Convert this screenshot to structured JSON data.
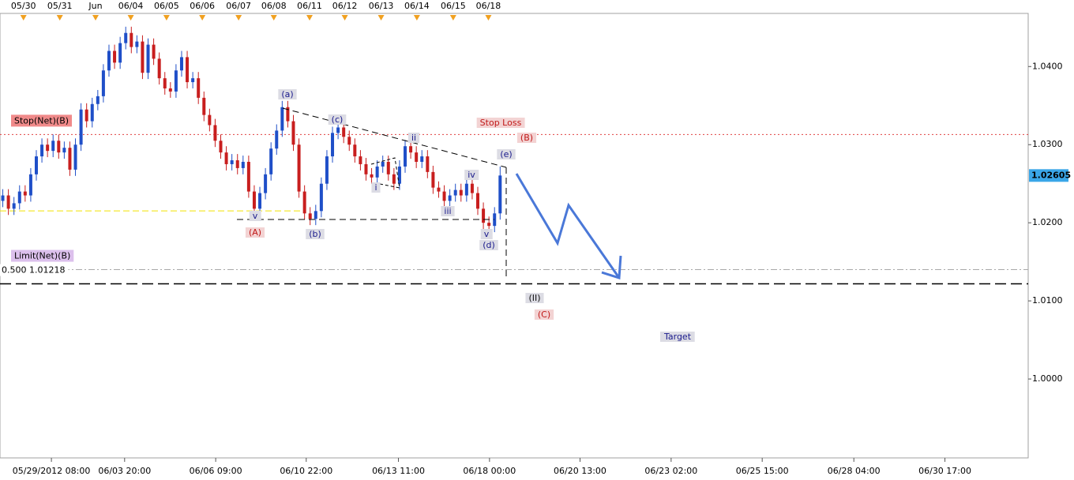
{
  "chart_data": {
    "type": "candlestick",
    "up_color": "#1f4fc8",
    "down_color": "#c81e1e",
    "ohlc": [
      [
        1.0228,
        1.0243,
        1.022,
        1.0235
      ],
      [
        1.0235,
        1.0243,
        1.021,
        1.0218
      ],
      [
        1.0218,
        1.0233,
        1.021,
        1.0225
      ],
      [
        1.0225,
        1.0248,
        1.0217,
        1.024
      ],
      [
        1.024,
        1.0248,
        1.0227,
        1.0235
      ],
      [
        1.0235,
        1.027,
        1.0227,
        1.0262
      ],
      [
        1.0262,
        1.0293,
        1.0254,
        1.0285
      ],
      [
        1.0285,
        1.0308,
        1.0277,
        1.03
      ],
      [
        1.03,
        1.0308,
        1.0284,
        1.0292
      ],
      [
        1.0292,
        1.0313,
        1.0284,
        1.0305
      ],
      [
        1.0305,
        1.0313,
        1.0282,
        1.029
      ],
      [
        1.029,
        1.0304,
        1.0282,
        1.0296
      ],
      [
        1.0296,
        1.0304,
        1.026,
        1.0268
      ],
      [
        1.0268,
        1.0308,
        1.026,
        1.03
      ],
      [
        1.03,
        1.0353,
        1.0292,
        1.0345
      ],
      [
        1.0345,
        1.0353,
        1.0322,
        1.033
      ],
      [
        1.033,
        1.036,
        1.0322,
        1.0352
      ],
      [
        1.0352,
        1.037,
        1.0344,
        1.0362
      ],
      [
        1.0362,
        1.0403,
        1.0354,
        1.0395
      ],
      [
        1.0395,
        1.0428,
        1.0387,
        1.042
      ],
      [
        1.042,
        1.0428,
        1.0397,
        1.0405
      ],
      [
        1.0405,
        1.0438,
        1.0397,
        1.043
      ],
      [
        1.043,
        1.0451,
        1.0422,
        1.0443
      ],
      [
        1.0443,
        1.0451,
        1.0417,
        1.0425
      ],
      [
        1.0425,
        1.044,
        1.0417,
        1.0432
      ],
      [
        1.0432,
        1.044,
        1.0384,
        1.0392
      ],
      [
        1.0392,
        1.0436,
        1.0384,
        1.0428
      ],
      [
        1.0428,
        1.0436,
        1.0402,
        1.041
      ],
      [
        1.041,
        1.0418,
        1.0377,
        1.0385
      ],
      [
        1.0385,
        1.0393,
        1.0364,
        1.0372
      ],
      [
        1.0372,
        1.038,
        1.036,
        1.0368
      ],
      [
        1.0368,
        1.0403,
        1.036,
        1.0395
      ],
      [
        1.0395,
        1.042,
        1.0387,
        1.0412
      ],
      [
        1.0412,
        1.042,
        1.0372,
        1.038
      ],
      [
        1.038,
        1.0393,
        1.0372,
        1.0385
      ],
      [
        1.0385,
        1.0393,
        1.0352,
        1.036
      ],
      [
        1.036,
        1.0368,
        1.033,
        1.0338
      ],
      [
        1.0338,
        1.0346,
        1.0317,
        1.0325
      ],
      [
        1.0325,
        1.0333,
        1.0297,
        1.0305
      ],
      [
        1.0305,
        1.0313,
        1.0282,
        1.029
      ],
      [
        1.029,
        1.0298,
        1.0267,
        1.0275
      ],
      [
        1.0275,
        1.0288,
        1.0267,
        1.028
      ],
      [
        1.028,
        1.0288,
        1.0262,
        1.027
      ],
      [
        1.027,
        1.0286,
        1.0262,
        1.0278
      ],
      [
        1.0278,
        1.0286,
        1.0232,
        1.024
      ],
      [
        1.024,
        1.0248,
        1.021,
        1.0218
      ],
      [
        1.0218,
        1.0246,
        1.021,
        1.0238
      ],
      [
        1.0238,
        1.027,
        1.023,
        1.0262
      ],
      [
        1.0262,
        1.0303,
        1.0254,
        1.0295
      ],
      [
        1.0295,
        1.0326,
        1.0287,
        1.0318
      ],
      [
        1.0318,
        1.0356,
        1.031,
        1.0348
      ],
      [
        1.0348,
        1.0356,
        1.0322,
        1.033
      ],
      [
        1.033,
        1.0338,
        1.0292,
        1.03
      ],
      [
        1.03,
        1.0308,
        1.0232,
        1.024
      ],
      [
        1.024,
        1.0248,
        1.0204,
        1.0212
      ],
      [
        1.0212,
        1.022,
        1.0197,
        1.0205
      ],
      [
        1.0205,
        1.0223,
        1.0197,
        1.0215
      ],
      [
        1.0215,
        1.0258,
        1.0207,
        1.025
      ],
      [
        1.025,
        1.0293,
        1.0242,
        1.0285
      ],
      [
        1.0285,
        1.0323,
        1.0277,
        1.0315
      ],
      [
        1.0315,
        1.033,
        1.0307,
        1.0322
      ],
      [
        1.0322,
        1.033,
        1.0302,
        1.031
      ],
      [
        1.031,
        1.0318,
        1.0292,
        1.03
      ],
      [
        1.03,
        1.0308,
        1.0277,
        1.0285
      ],
      [
        1.0285,
        1.0293,
        1.0267,
        1.0275
      ],
      [
        1.0275,
        1.0283,
        1.0254,
        1.0262
      ],
      [
        1.0262,
        1.027,
        1.025,
        1.0258
      ],
      [
        1.0258,
        1.028,
        1.025,
        1.0272
      ],
      [
        1.0272,
        1.0286,
        1.0264,
        1.0278
      ],
      [
        1.0278,
        1.0286,
        1.0254,
        1.0262
      ],
      [
        1.0262,
        1.027,
        1.0242,
        1.025
      ],
      [
        1.025,
        1.028,
        1.0242,
        1.0272
      ],
      [
        1.0272,
        1.0306,
        1.0264,
        1.0298
      ],
      [
        1.0298,
        1.0306,
        1.0282,
        1.029
      ],
      [
        1.029,
        1.0298,
        1.027,
        1.0278
      ],
      [
        1.0278,
        1.0293,
        1.027,
        1.0285
      ],
      [
        1.0285,
        1.0293,
        1.0257,
        1.0265
      ],
      [
        1.0265,
        1.0273,
        1.0237,
        1.0245
      ],
      [
        1.0245,
        1.0253,
        1.0232,
        1.024
      ],
      [
        1.024,
        1.0248,
        1.022,
        1.0228
      ],
      [
        1.0228,
        1.0243,
        1.022,
        1.0235
      ],
      [
        1.0235,
        1.025,
        1.0227,
        1.0242
      ],
      [
        1.0242,
        1.025,
        1.0227,
        1.0235
      ],
      [
        1.0235,
        1.0258,
        1.0227,
        1.025
      ],
      [
        1.025,
        1.0258,
        1.023,
        1.0238
      ],
      [
        1.0238,
        1.0246,
        1.021,
        1.0218
      ],
      [
        1.0218,
        1.0226,
        1.0192,
        1.02
      ],
      [
        1.02,
        1.0208,
        1.0188,
        1.0196
      ],
      [
        1.0196,
        1.022,
        1.0188,
        1.0212
      ],
      [
        1.0212,
        1.0272,
        1.0204,
        1.02605
      ]
    ],
    "xlim": [
      0,
      184
    ],
    "xticks": [
      {
        "value": 9.2,
        "label": "05/29/2012 08:00"
      },
      {
        "value": 22.3,
        "label": "06/03 20:00"
      },
      {
        "value": 38.6,
        "label": "06/06 09:00"
      },
      {
        "value": 54.8,
        "label": "06/10 22:00"
      },
      {
        "value": 71.3,
        "label": "06/13 11:00"
      },
      {
        "value": 87.6,
        "label": "06/18 00:00"
      },
      {
        "value": 103.8,
        "label": "06/20 13:00"
      },
      {
        "value": 120.1,
        "label": "06/23 02:00"
      },
      {
        "value": 136.4,
        "label": "06/25 15:00"
      },
      {
        "value": 152.8,
        "label": "06/28 04:00"
      },
      {
        "value": 169.1,
        "label": "06/30 17:00"
      }
    ],
    "x2ticks": [
      {
        "value": 4.2,
        "label": "05/30"
      },
      {
        "value": 10.7,
        "label": "05/31"
      },
      {
        "value": 17.1,
        "label": "Jun"
      },
      {
        "value": 23.4,
        "label": "06/04"
      },
      {
        "value": 29.8,
        "label": "06/05"
      },
      {
        "value": 36.2,
        "label": "06/06"
      },
      {
        "value": 42.7,
        "label": "06/07"
      },
      {
        "value": 49.0,
        "label": "06/08"
      },
      {
        "value": 55.4,
        "label": "06/11"
      },
      {
        "value": 61.7,
        "label": "06/12"
      },
      {
        "value": 68.2,
        "label": "06/13"
      },
      {
        "value": 74.6,
        "label": "06/14"
      },
      {
        "value": 81.1,
        "label": "06/15"
      },
      {
        "value": 87.4,
        "label": "06/18"
      }
    ],
    "ylim": [
      0.9899,
      1.0468
    ],
    "yticks": [
      {
        "value": 1.0,
        "label": "1.0000"
      },
      {
        "value": 1.01,
        "label": "1.0100"
      },
      {
        "value": 1.02,
        "label": "1.0200"
      },
      {
        "value": 1.03,
        "label": "1.0300"
      },
      {
        "value": 1.04,
        "label": "1.0400"
      }
    ],
    "levels": [
      {
        "label": "Stop(Net)(B)",
        "value": 1.0313,
        "color": "#e04040",
        "dash": "2 3",
        "label_bg": "#f08a8a",
        "label_color": "#fff"
      },
      {
        "label": "Limit(Net)(B)",
        "value": 1.014,
        "color": "#a8a8a8",
        "dash": "8 3 2 3",
        "label_bg": "#dcc0ec",
        "label_color": "#7a4a9a"
      },
      {
        "label": "0.500 1.01218",
        "value": 1.01218,
        "color": "#000000",
        "dash": "14 6",
        "label_bg": "#ffffff",
        "label_color": "#000"
      },
      {
        "value": 1.02152,
        "color": "#f2e200",
        "dash": "8 4",
        "end": 53.7
      }
    ],
    "last_price": 1.02605,
    "annotations": [
      "(a)",
      "(c)",
      "ii",
      "Stop Loss",
      "(B)",
      "(e)",
      "iv",
      "i",
      "iii",
      "v",
      "(A)",
      "(b)",
      "v",
      "(d)",
      "(II)",
      "(C)",
      "Target"
    ]
  }
}
